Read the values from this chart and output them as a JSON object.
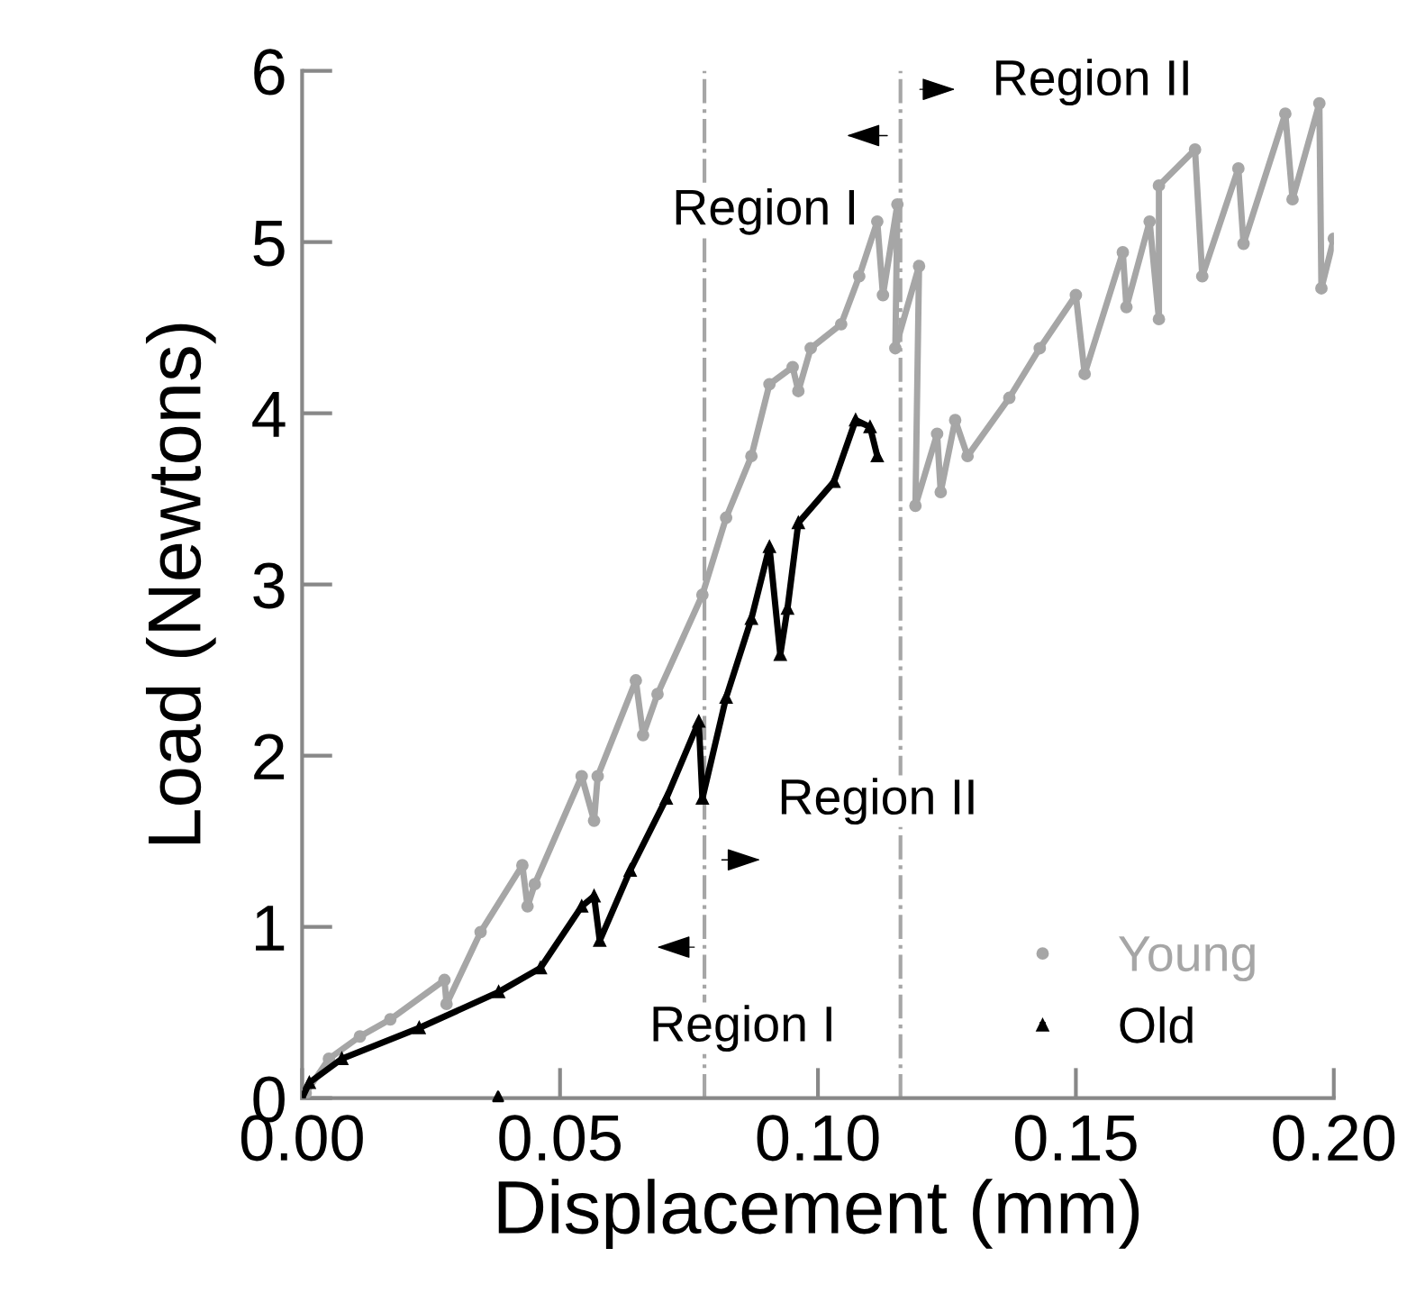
{
  "chart_data": {
    "type": "line",
    "xlabel": "Displacement (mm)",
    "ylabel": "Load (Newtons)",
    "xlim": [
      0,
      0.2
    ],
    "ylim": [
      0,
      6
    ],
    "xticks": [
      {
        "value": 0,
        "label": "0.00"
      },
      {
        "value": 0.05,
        "label": "0.05"
      },
      {
        "value": 0.1,
        "label": "0.10"
      },
      {
        "value": 0.15,
        "label": "0.15"
      },
      {
        "value": 0.2,
        "label": "0.20"
      }
    ],
    "yticks": [
      0,
      1,
      2,
      3,
      4,
      5,
      6
    ],
    "grid": false,
    "legend": "bottom right",
    "series": [
      {
        "name": "Young",
        "color": "#a6a6a6",
        "marker": "circle",
        "x": [
          0.0007,
          0.0052,
          0.0112,
          0.0171,
          0.0276,
          0.028,
          0.0346,
          0.0427,
          0.0437,
          0.0451,
          0.0542,
          0.0566,
          0.0573,
          0.0647,
          0.0661,
          0.0689,
          0.0776,
          0.0822,
          0.0871,
          0.0906,
          0.0951,
          0.0962,
          0.0986,
          0.1045,
          0.108,
          0.1115,
          0.1126,
          0.1154,
          0.115,
          0.1196,
          0.1189,
          0.1231,
          0.1238,
          0.1266,
          0.129,
          0.1371,
          0.143,
          0.15,
          0.1517,
          0.1591,
          0.1598,
          0.1643,
          0.1661,
          0.1661,
          0.1731,
          0.1745,
          0.1815,
          0.1825,
          0.1906,
          0.192,
          0.1972,
          0.1976,
          0.2
        ],
        "values": [
          0.03,
          0.23,
          0.36,
          0.46,
          0.69,
          0.55,
          0.97,
          1.36,
          1.12,
          1.25,
          1.88,
          1.62,
          1.88,
          2.44,
          2.12,
          2.36,
          2.94,
          3.39,
          3.75,
          4.17,
          4.27,
          4.13,
          4.38,
          4.52,
          4.8,
          5.12,
          4.69,
          5.22,
          4.38,
          4.86,
          3.46,
          3.88,
          3.54,
          3.96,
          3.75,
          4.09,
          4.38,
          4.69,
          4.23,
          4.94,
          4.62,
          5.12,
          4.55,
          5.33,
          5.54,
          4.8,
          5.43,
          4.99,
          5.75,
          5.25,
          5.81,
          4.73,
          5.02
        ]
      },
      {
        "name": "Old",
        "color": "#000000",
        "marker": "triangle",
        "x": [
          0,
          0.0014,
          0.0077,
          0.0227,
          0.0381,
          0.0462,
          0.0542,
          0.0566,
          0.0577,
          0.0636,
          0.0706,
          0.0769,
          0.0776,
          0.0822,
          0.0871,
          0.0906,
          0.0927,
          0.0941,
          0.0962,
          0.1031,
          0.1073,
          0.1101,
          0.1115
        ],
        "values": [
          0,
          0.09,
          0.23,
          0.41,
          0.62,
          0.76,
          1.12,
          1.18,
          0.92,
          1.33,
          1.75,
          2.2,
          1.75,
          2.34,
          2.8,
          3.22,
          2.59,
          2.86,
          3.36,
          3.6,
          3.96,
          3.92,
          3.75
        ]
      },
      {
        "color": "#000000",
        "type": "scatter",
        "marker": "triangle",
        "x": [
          0.038
        ],
        "values": [
          0.01
        ]
      }
    ],
    "ref_lines": [
      {
        "axis": "x",
        "value": 0.116,
        "color": "#a6a6a6",
        "line_style": "dashdot"
      },
      {
        "axis": "x",
        "value": 0.078,
        "color": "#a6a6a6",
        "line_style": "dashdot"
      }
    ],
    "annotations": [
      "Region II",
      "Region I",
      "Region II",
      "Region I"
    ]
  }
}
